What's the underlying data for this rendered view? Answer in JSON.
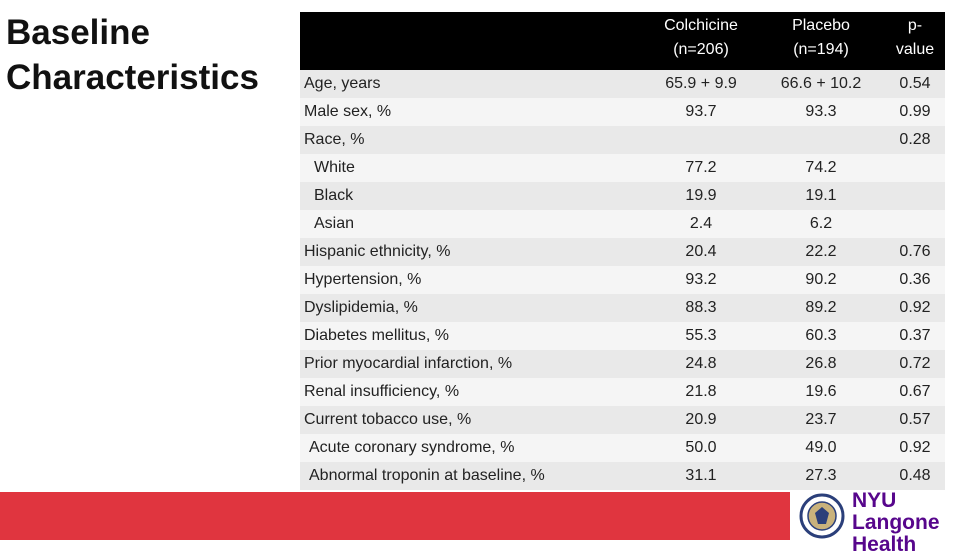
{
  "title": "Baseline Characteristics",
  "table": {
    "columns": [
      "Colchicine (n=206)",
      "Placebo (n=194)",
      "p-value"
    ],
    "rows": [
      {
        "label": "Age, years",
        "colchicine": "65.9 + 9.9",
        "placebo": "66.6 + 10.2",
        "p": "0.54",
        "indent": 0
      },
      {
        "label": "Male sex, %",
        "colchicine": "93.7",
        "placebo": "93.3",
        "p": "0.99",
        "indent": 0
      },
      {
        "label": "Race, %",
        "colchicine": null,
        "placebo": null,
        "p": "0.28",
        "indent": 0
      },
      {
        "label": "White",
        "colchicine": "77.2",
        "placebo": "74.2",
        "p": null,
        "indent": 2
      },
      {
        "label": "Black",
        "colchicine": "19.9",
        "placebo": "19.1",
        "p": null,
        "indent": 2
      },
      {
        "label": "Asian",
        "colchicine": "2.4",
        "placebo": "6.2",
        "p": null,
        "indent": 2
      },
      {
        "label": "Hispanic ethnicity, %",
        "colchicine": "20.4",
        "placebo": "22.2",
        "p": "0.76",
        "indent": 0
      },
      {
        "label": "Hypertension, %",
        "colchicine": "93.2",
        "placebo": "90.2",
        "p": "0.36",
        "indent": 0
      },
      {
        "label": "Dyslipidemia, %",
        "colchicine": "88.3",
        "placebo": "89.2",
        "p": "0.92",
        "indent": 0
      },
      {
        "label": "Diabetes mellitus, %",
        "colchicine": "55.3",
        "placebo": "60.3",
        "p": "0.37",
        "indent": 0
      },
      {
        "label": "Prior myocardial infarction, %",
        "colchicine": "24.8",
        "placebo": "26.8",
        "p": "0.72",
        "indent": 0
      },
      {
        "label": "Renal insufficiency, %",
        "colchicine": "21.8",
        "placebo": "19.6",
        "p": "0.67",
        "indent": 0
      },
      {
        "label": "Current tobacco use, %",
        "colchicine": "20.9",
        "placebo": "23.7",
        "p": "0.57",
        "indent": 0
      },
      {
        "label": "Acute coronary syndrome, %",
        "colchicine": "50.0",
        "placebo": "49.0",
        "p": "0.92",
        "indent": 1
      },
      {
        "label": "Abnormal troponin at baseline, %",
        "colchicine": "31.1",
        "placebo": "27.3",
        "p": "0.48",
        "indent": 1
      }
    ]
  },
  "logo": {
    "line1": "NYU Langone",
    "line2": "Health"
  }
}
